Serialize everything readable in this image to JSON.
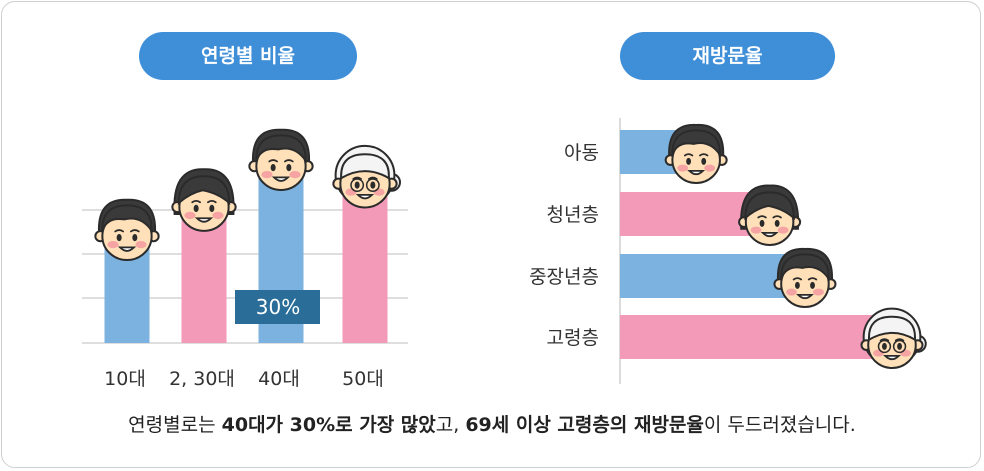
{
  "titles": {
    "left": "연령별 비율",
    "right": "재방문율"
  },
  "colors": {
    "blue": "#7cb2e0",
    "pink": "#f39ab9",
    "pill": "#3f8ed8",
    "callout": "#2a6d98"
  },
  "chart_data": [
    {
      "type": "bar",
      "title": "연령별 비율",
      "categories": [
        "10대",
        "2, 30대",
        "40대",
        "50대"
      ],
      "values": [
        18,
        23,
        30,
        27
      ],
      "bar_colors": [
        "#7cb2e0",
        "#f39ab9",
        "#7cb2e0",
        "#f39ab9"
      ],
      "ylim": [
        0,
        30
      ],
      "grid": true,
      "annotations": [
        {
          "category": "40대",
          "label": "30%"
        }
      ]
    },
    {
      "type": "bar",
      "orientation": "horizontal",
      "title": "재방문율",
      "categories": [
        "아동",
        "청년층",
        "중장년층",
        "고령층"
      ],
      "values": [
        28,
        55,
        68,
        100
      ],
      "bar_colors": [
        "#7cb2e0",
        "#f39ab9",
        "#7cb2e0",
        "#f39ab9"
      ],
      "xlim": [
        0,
        100
      ]
    }
  ],
  "caption": {
    "p1": "연령별로는 ",
    "b1": "40대가 30%로 가장 많았",
    "p2": "고, ",
    "b2": "69세 이상 고령층의 재방문율",
    "p3": "이 두드러졌습니다."
  }
}
